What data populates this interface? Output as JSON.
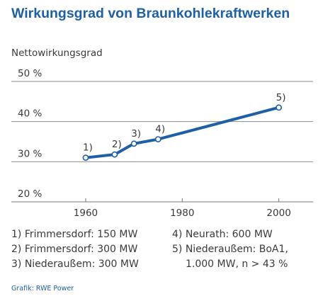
{
  "chart_data": {
    "type": "line",
    "title": "Wirkungsgrad von Braunkohlekraftwerken",
    "ylabel": "Nettowirkungsgrad",
    "xlabel": "",
    "xlim": [
      1950,
      2008
    ],
    "ylim": [
      20,
      50
    ],
    "x_ticks": [
      1960,
      1980,
      2000
    ],
    "y_ticks": [
      20,
      30,
      40,
      50
    ],
    "y_tick_labels": [
      "20 %",
      "30 %",
      "40 %",
      "50 %"
    ],
    "grid": "horizontal",
    "series": [
      {
        "color": "#1f5fa6",
        "points": [
          {
            "x": 1960,
            "y": 31.0,
            "label": "1)"
          },
          {
            "x": 1966,
            "y": 31.8,
            "label": "2)"
          },
          {
            "x": 1970,
            "y": 34.5,
            "label": "3)"
          },
          {
            "x": 1975,
            "y": 35.6,
            "label": "4)"
          },
          {
            "x": 2000,
            "y": 43.5,
            "label": "5)"
          }
        ]
      }
    ]
  },
  "notes": [
    {
      "text": "1) Frimmersdorf: 150 MW"
    },
    {
      "text": "2) Frimmersdorf: 300 MW"
    },
    {
      "text": "3) Niederaußem: 300 MW"
    },
    {
      "text": "4) Neurath: 600 MW"
    },
    {
      "text": "5) Niederaußem: BoA1,"
    },
    {
      "text": "1.000 MW, n > 43 %"
    }
  ],
  "source": "Grafik: RWE Power",
  "colors": {
    "accent": "#1f5fa6",
    "text": "#3a3a3a",
    "grid": "#8c8c8c",
    "axis": "#777777"
  }
}
